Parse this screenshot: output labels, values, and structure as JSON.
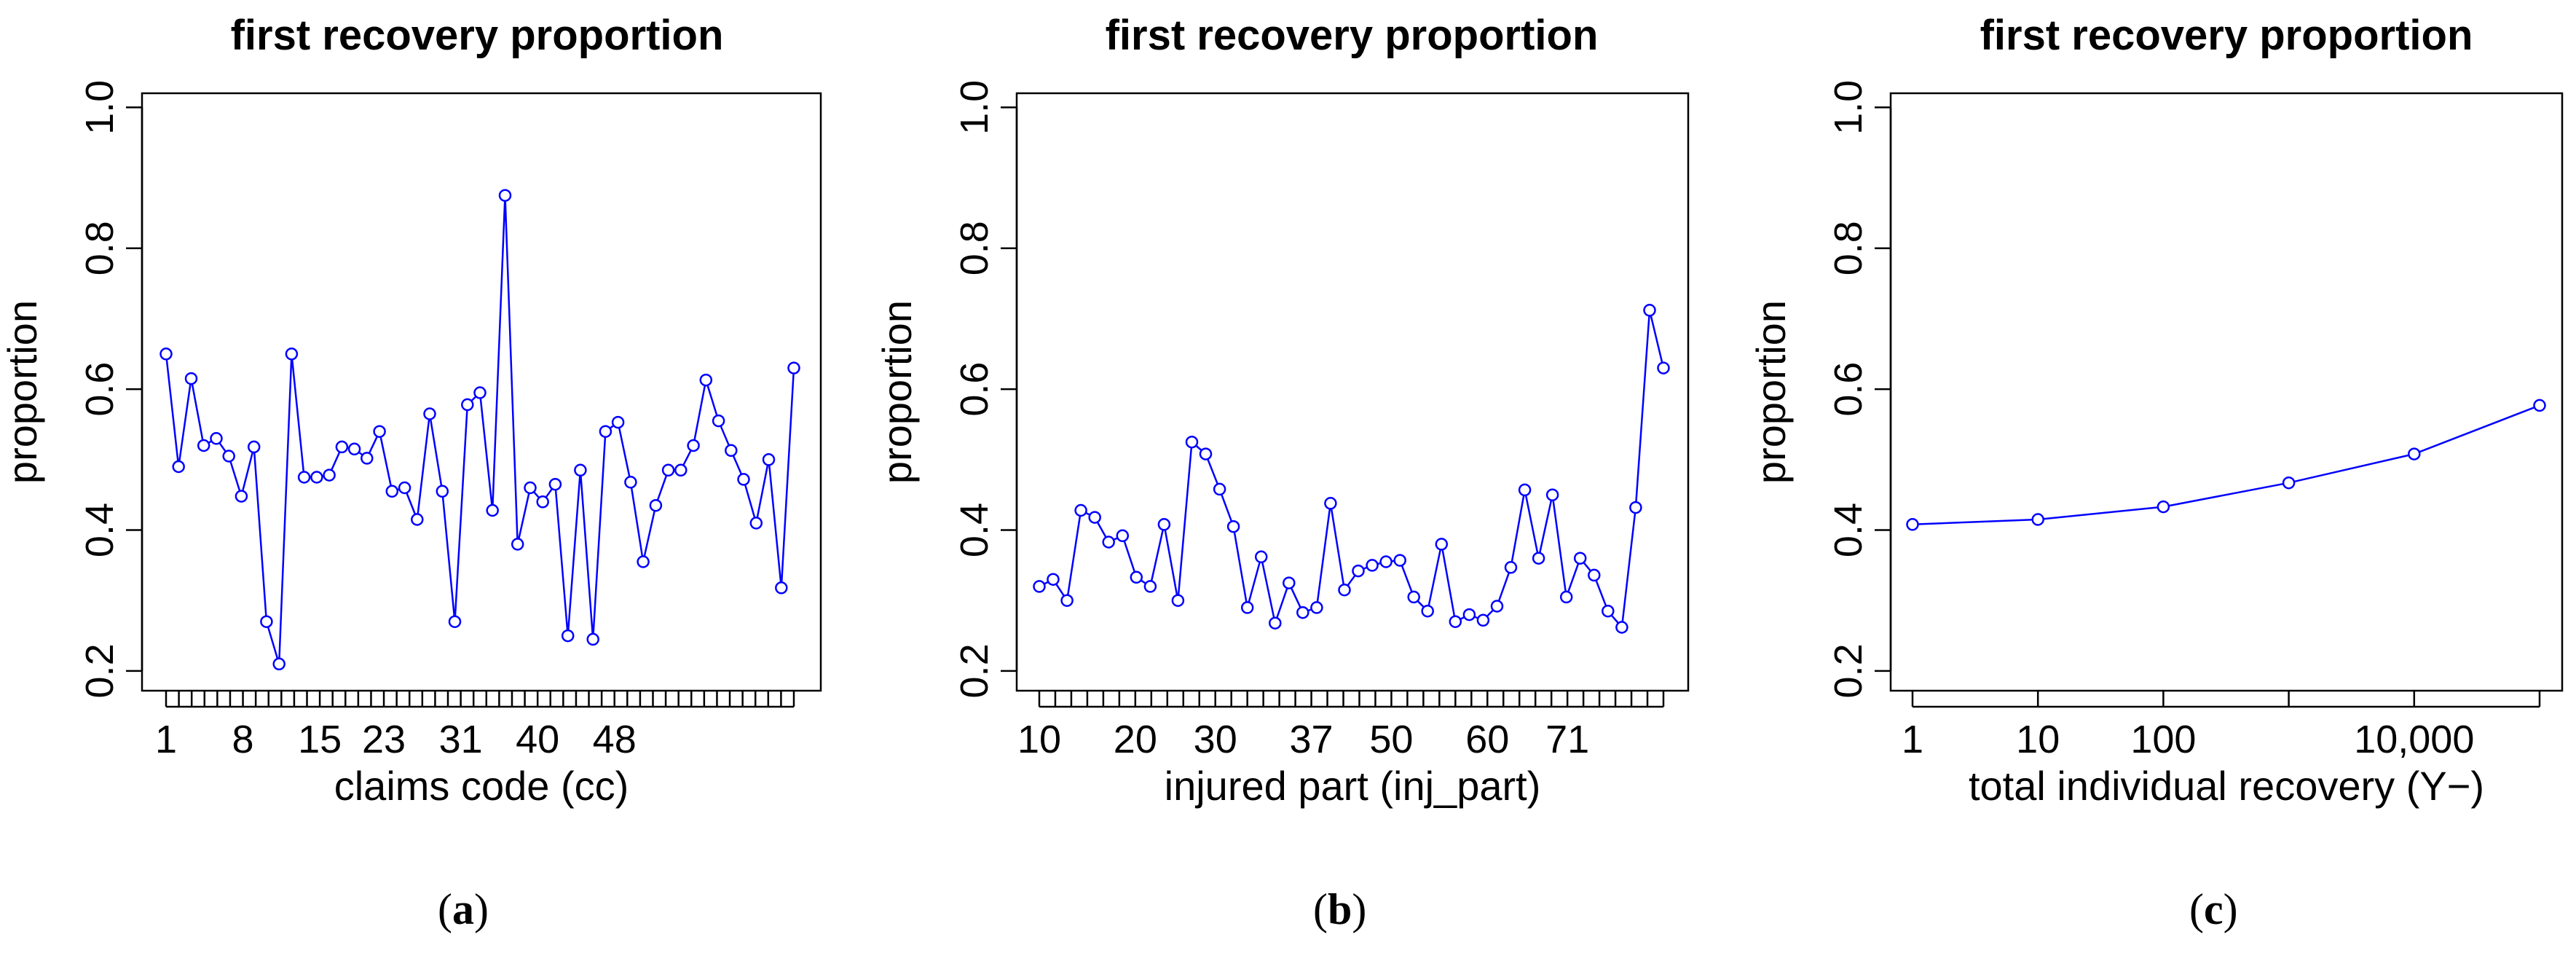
{
  "chart_data": [
    {
      "type": "line",
      "title": "first recovery proportion",
      "xlabel": "claims code (cc)",
      "ylabel": "proportion",
      "caption_letter": "a",
      "xscale": "category",
      "ylim": [
        0.2,
        1.0
      ],
      "yticks": [
        "0.2",
        "0.4",
        "0.6",
        "0.8",
        "1.0"
      ],
      "tick_labels": [
        "1",
        "8",
        "15",
        "23",
        "31",
        "40",
        "48"
      ],
      "tick_label_indices": [
        0,
        5,
        10,
        15,
        20,
        25,
        30
      ],
      "tick_count": 50,
      "series": [
        {
          "name": "first recovery proportion",
          "color": "#0000ff",
          "values": [
            0.65,
            0.49,
            0.615,
            0.52,
            0.53,
            0.505,
            0.448,
            0.518,
            0.27,
            0.21,
            0.65,
            0.475,
            0.475,
            0.478,
            0.518,
            0.515,
            0.502,
            0.54,
            0.455,
            0.46,
            0.415,
            0.565,
            0.455,
            0.27,
            0.578,
            0.595,
            0.428,
            0.875,
            0.38,
            0.46,
            0.44,
            0.465,
            0.25,
            0.485,
            0.245,
            0.54,
            0.553,
            0.468,
            0.355,
            0.435,
            0.485,
            0.485,
            0.52,
            0.613,
            0.555,
            0.513,
            0.472,
            0.41,
            0.5,
            0.318,
            0.63
          ]
        }
      ]
    },
    {
      "type": "line",
      "title": "first recovery proportion",
      "xlabel": "injured part (inj_part)",
      "ylabel": "proportion",
      "caption_letter": "b",
      "xscale": "category",
      "ylim": [
        0.2,
        1.0
      ],
      "yticks": [
        "0.2",
        "0.4",
        "0.6",
        "0.8",
        "1.0"
      ],
      "tick_labels": [
        "10",
        "20",
        "30",
        "37",
        "50",
        "60",
        "71"
      ],
      "tick_label_indices": [
        0,
        6,
        12,
        18,
        24,
        30,
        36
      ],
      "tick_count": 40,
      "series": [
        {
          "name": "first recovery proportion",
          "color": "#0000ff",
          "values": [
            0.32,
            0.33,
            0.3,
            0.428,
            0.418,
            0.383,
            0.392,
            0.333,
            0.32,
            0.408,
            0.3,
            0.525,
            0.508,
            0.458,
            0.405,
            0.29,
            0.362,
            0.268,
            0.325,
            0.283,
            0.29,
            0.438,
            0.315,
            0.342,
            0.35,
            0.355,
            0.357,
            0.305,
            0.285,
            0.38,
            0.27,
            0.28,
            0.272,
            0.292,
            0.347,
            0.457,
            0.36,
            0.45,
            0.305,
            0.36,
            0.336,
            0.285,
            0.262,
            0.432,
            0.712,
            0.63
          ]
        }
      ]
    },
    {
      "type": "line",
      "title": "first recovery proportion",
      "xlabel": "total individual recovery (Y−)",
      "ylabel": "proportion",
      "caption_letter": "c",
      "xscale": "log10",
      "ylim": [
        0.2,
        1.0
      ],
      "yticks": [
        "0.2",
        "0.4",
        "0.6",
        "0.8",
        "1.0"
      ],
      "tick_labels": [
        "1",
        "10",
        "100",
        "",
        "10,000",
        ""
      ],
      "tick_values": [
        1,
        10,
        100,
        1000,
        10000,
        100000
      ],
      "series": [
        {
          "name": "first recovery proportion",
          "color": "#0000ff",
          "x": [
            1,
            10,
            100,
            1000,
            10000,
            100000
          ],
          "values": [
            0.408,
            0.415,
            0.433,
            0.467,
            0.508,
            0.577
          ]
        }
      ]
    }
  ]
}
